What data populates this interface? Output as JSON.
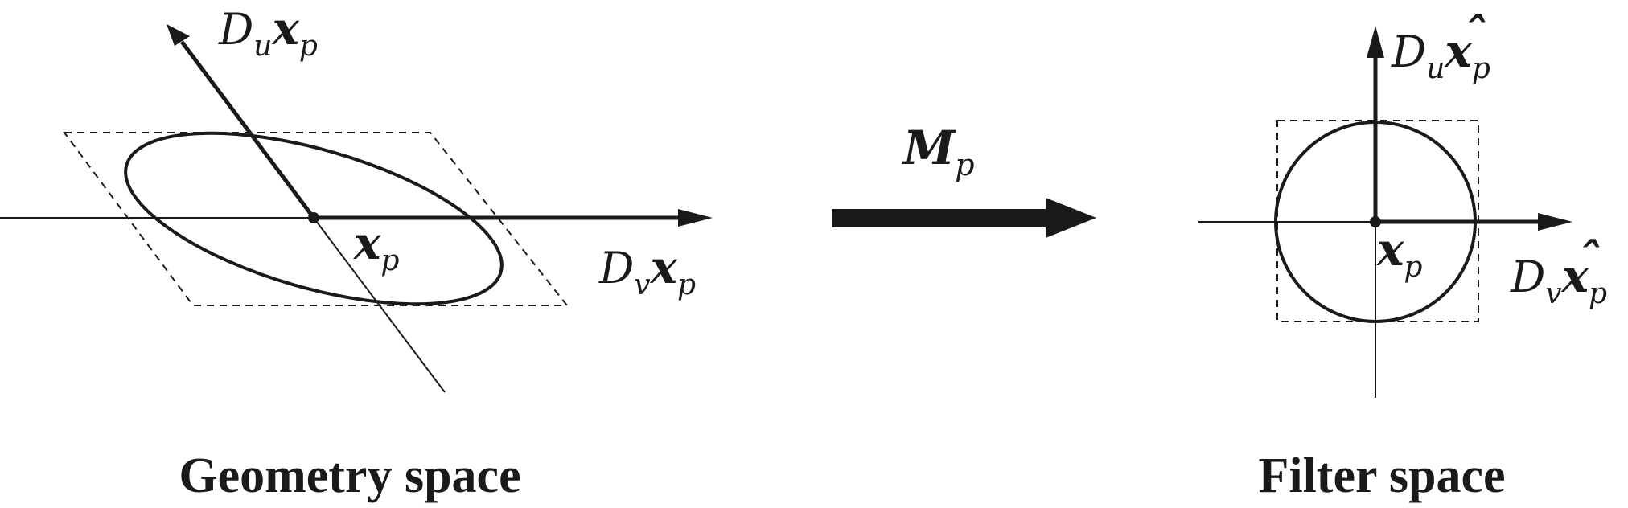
{
  "left_panel": {
    "caption": "Geometry space",
    "du_label": {
      "D": "D",
      "sub": "u",
      "vec": "x",
      "vsub": "p"
    },
    "dv_label": {
      "D": "D",
      "sub": "v",
      "vec": "x",
      "vsub": "p"
    },
    "point_label": {
      "vec": "x",
      "vsub": "p"
    }
  },
  "transform": {
    "label": "M",
    "sub": "p"
  },
  "right_panel": {
    "caption": "Filter space",
    "du_label": {
      "D": "D",
      "sub": "u",
      "vec": "x",
      "hat": "ˆ",
      "vsub": "p"
    },
    "dv_label": {
      "D": "D",
      "sub": "v",
      "vec": "x",
      "hat": "ˆ",
      "vsub": "p"
    },
    "point_label": {
      "vec": "x",
      "vsub": "p"
    }
  }
}
